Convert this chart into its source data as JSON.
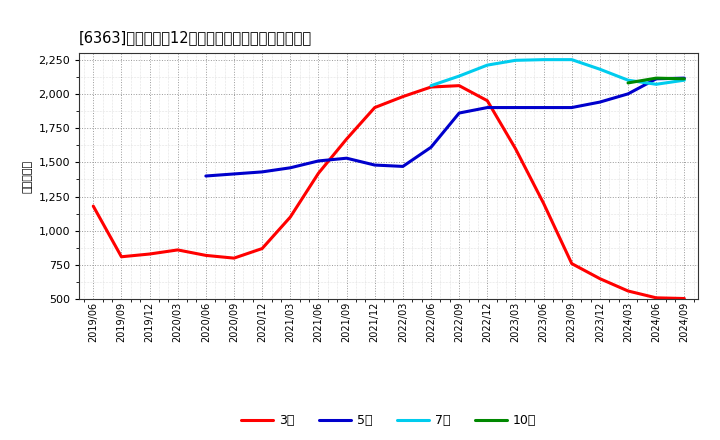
{
  "title": "[6363]　経常利益12か月移動合計の標準偏差の推移",
  "ylabel": "（百万円）",
  "ylim": [
    500,
    2300
  ],
  "yticks": [
    500,
    750,
    1000,
    1250,
    1500,
    1750,
    2000,
    2250
  ],
  "background_color": "#ffffff",
  "plot_bg_color": "#ffffff",
  "grid_color": "#999999",
  "legend": [
    "3年",
    "5年",
    "7年",
    "10年"
  ],
  "legend_colors": [
    "#ff0000",
    "#0000cc",
    "#00ccee",
    "#008800"
  ],
  "x_labels": [
    "2019/06",
    "2019/09",
    "2019/12",
    "2020/03",
    "2020/06",
    "2020/09",
    "2020/12",
    "2021/03",
    "2021/06",
    "2021/09",
    "2021/12",
    "2022/03",
    "2022/06",
    "2022/09",
    "2022/12",
    "2023/03",
    "2023/06",
    "2023/09",
    "2023/12",
    "2024/03",
    "2024/06",
    "2024/09"
  ],
  "series_3y": [
    1180,
    810,
    830,
    860,
    820,
    800,
    870,
    1100,
    1420,
    1670,
    1900,
    1980,
    2050,
    2060,
    1950,
    1600,
    1200,
    760,
    650,
    560,
    510,
    505
  ],
  "series_5y": [
    null,
    null,
    null,
    null,
    1400,
    1415,
    1430,
    1460,
    1510,
    1530,
    1480,
    1470,
    1610,
    1860,
    1900,
    1900,
    1900,
    1900,
    1940,
    2000,
    2110,
    2115
  ],
  "series_7y": [
    null,
    null,
    null,
    null,
    null,
    null,
    null,
    null,
    null,
    null,
    null,
    null,
    2060,
    2130,
    2210,
    2245,
    2250,
    2250,
    2180,
    2100,
    2070,
    2100
  ],
  "series_10y": [
    null,
    null,
    null,
    null,
    null,
    null,
    null,
    null,
    null,
    null,
    null,
    null,
    null,
    null,
    null,
    null,
    null,
    null,
    null,
    2080,
    2115,
    2110
  ]
}
